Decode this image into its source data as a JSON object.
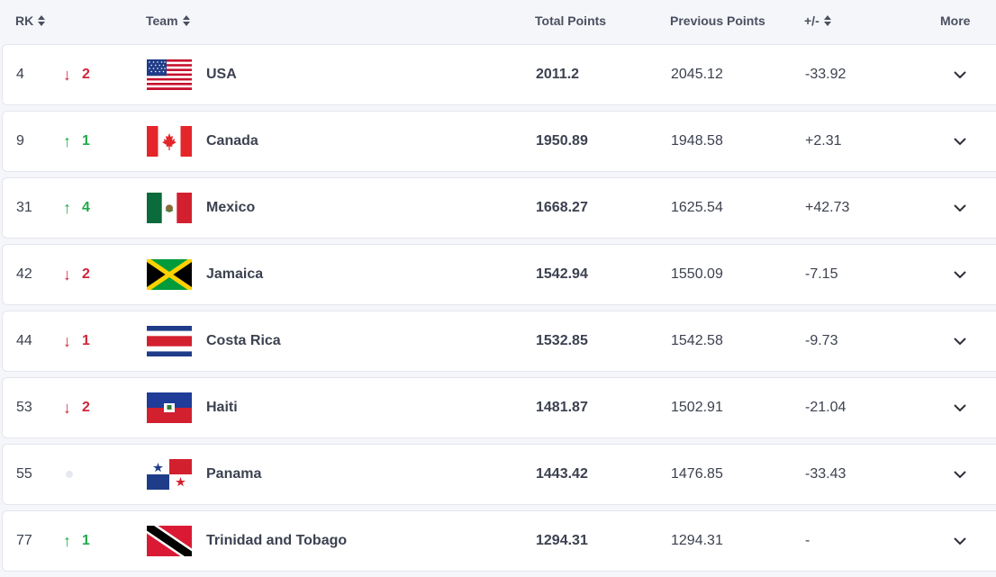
{
  "header": {
    "rank_label": "RK",
    "team_label": "Team",
    "total_label": "Total Points",
    "previous_label": "Previous Points",
    "diff_label": "+/-",
    "more_label": "More"
  },
  "colors": {
    "down": "#d0263a",
    "up": "#23a84a"
  },
  "rows": [
    {
      "rank": "4",
      "direction": "down",
      "move": "2",
      "team": "USA",
      "flag": "flag-usa",
      "total": "2011.2",
      "previous": "2045.12",
      "diff": "-33.92"
    },
    {
      "rank": "9",
      "direction": "up",
      "move": "1",
      "team": "Canada",
      "flag": "flag-canada",
      "total": "1950.89",
      "previous": "1948.58",
      "diff": "+2.31"
    },
    {
      "rank": "31",
      "direction": "up",
      "move": "4",
      "team": "Mexico",
      "flag": "flag-mexico",
      "total": "1668.27",
      "previous": "1625.54",
      "diff": "+42.73"
    },
    {
      "rank": "42",
      "direction": "down",
      "move": "2",
      "team": "Jamaica",
      "flag": "flag-jamaica",
      "total": "1542.94",
      "previous": "1550.09",
      "diff": "-7.15"
    },
    {
      "rank": "44",
      "direction": "down",
      "move": "1",
      "team": "Costa Rica",
      "flag": "flag-costa-rica",
      "total": "1532.85",
      "previous": "1542.58",
      "diff": "-9.73"
    },
    {
      "rank": "53",
      "direction": "down",
      "move": "2",
      "team": "Haiti",
      "flag": "flag-haiti",
      "total": "1481.87",
      "previous": "1502.91",
      "diff": "-21.04"
    },
    {
      "rank": "55",
      "direction": "none",
      "move": "",
      "team": "Panama",
      "flag": "flag-panama",
      "total": "1443.42",
      "previous": "1476.85",
      "diff": "-33.43"
    },
    {
      "rank": "77",
      "direction": "up",
      "move": "1",
      "team": "Trinidad and Tobago",
      "flag": "flag-trinidad-and-tobago",
      "total": "1294.31",
      "previous": "1294.31",
      "diff": "-"
    }
  ]
}
